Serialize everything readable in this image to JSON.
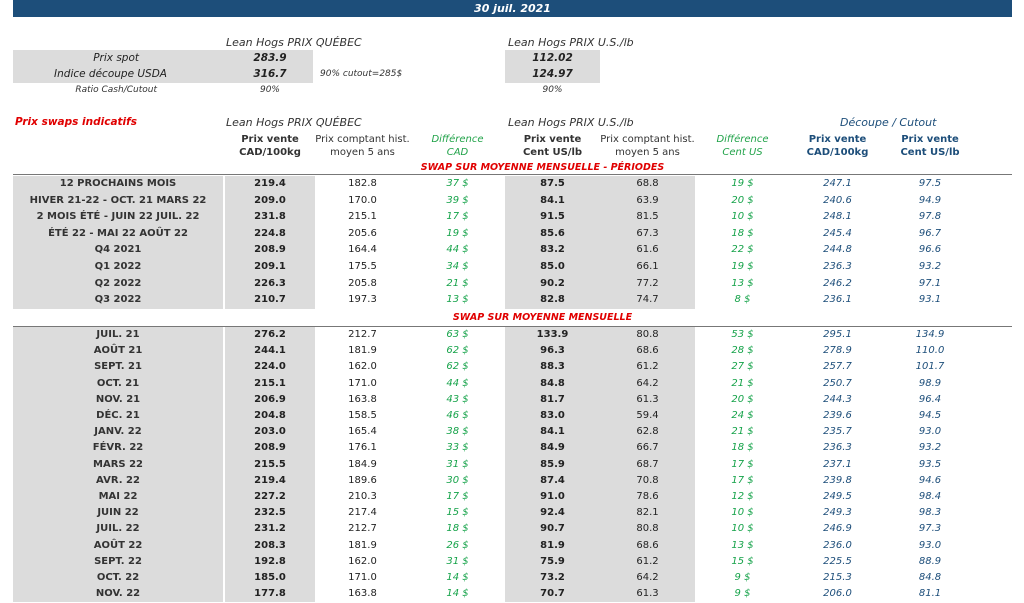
{
  "header": {
    "date": "30 juil. 2021"
  },
  "top": {
    "quebec_title": "Lean Hogs PRIX QUÉBEC",
    "us_title": "Lean Hogs PRIX U.S./lb",
    "rows": [
      {
        "label": "Prix spot",
        "qc": "283.9",
        "us": "112.02"
      },
      {
        "label": "Indice découpe USDA",
        "qc": "316.7",
        "us": "124.97",
        "note": "90% cutout=285$"
      }
    ],
    "ratio": {
      "label": "Ratio Cash/Cutout",
      "qc": "90%",
      "us": "90%"
    }
  },
  "swaps": {
    "title": "Prix swaps indicatifs",
    "quebec_title": "Lean Hogs PRIX QUÉBEC",
    "us_title": "Lean Hogs PRIX U.S./lb",
    "decoupe_title": "Découpe / Cutout",
    "col_headers": [
      [
        "Prix vente",
        "CAD/100kg"
      ],
      [
        "Prix comptant hist.",
        "moyen 5 ans"
      ],
      [
        "Différence",
        "CAD"
      ],
      [
        "Prix vente",
        "Cent US/lb"
      ],
      [
        "Prix comptant hist.",
        "moyen 5 ans"
      ],
      [
        "Différence",
        "Cent US"
      ],
      [
        "Prix vente",
        "CAD/100kg"
      ],
      [
        "Prix vente",
        "Cent US/lb"
      ]
    ],
    "section1_title": "SWAP SUR MOYENNE MENSUELLE - PÉRIODES",
    "section2_title": "SWAP SUR MOYENNE MENSUELLE",
    "periods": [
      [
        "12 PROCHAINS MOIS",
        "219.4",
        "182.8",
        "37 $",
        "87.5",
        "68.8",
        "19 $",
        "247.1",
        "97.5"
      ],
      [
        "HIVER 21-22 - OCT. 21 MARS 22",
        "209.0",
        "170.0",
        "39 $",
        "84.1",
        "63.9",
        "20 $",
        "240.6",
        "94.9"
      ],
      [
        "2 MOIS ÉTÉ - JUIN 22 JUIL. 22",
        "231.8",
        "215.1",
        "17 $",
        "91.5",
        "81.5",
        "10 $",
        "248.1",
        "97.8"
      ],
      [
        "ÉTÉ 22 - MAI 22 AOÛT 22",
        "224.8",
        "205.6",
        "19 $",
        "85.6",
        "67.3",
        "18 $",
        "245.4",
        "96.7"
      ],
      [
        "Q4 2021",
        "208.9",
        "164.4",
        "44 $",
        "83.2",
        "61.6",
        "22 $",
        "244.8",
        "96.6"
      ],
      [
        "Q1 2022",
        "209.1",
        "175.5",
        "34 $",
        "85.0",
        "66.1",
        "19 $",
        "236.3",
        "93.2"
      ],
      [
        "Q2 2022",
        "226.3",
        "205.8",
        "21 $",
        "90.2",
        "77.2",
        "13 $",
        "246.2",
        "97.1"
      ],
      [
        "Q3 2022",
        "210.7",
        "197.3",
        "13 $",
        "82.8",
        "74.7",
        "8 $",
        "236.1",
        "93.1"
      ]
    ],
    "months": [
      [
        "JUIL. 21",
        "276.2",
        "212.7",
        "63 $",
        "133.9",
        "80.8",
        "53 $",
        "295.1",
        "134.9"
      ],
      [
        "AOÛT 21",
        "244.1",
        "181.9",
        "62 $",
        "96.3",
        "68.6",
        "28 $",
        "278.9",
        "110.0"
      ],
      [
        "SEPT. 21",
        "224.0",
        "162.0",
        "62 $",
        "88.3",
        "61.2",
        "27 $",
        "257.7",
        "101.7"
      ],
      [
        "OCT. 21",
        "215.1",
        "171.0",
        "44 $",
        "84.8",
        "64.2",
        "21 $",
        "250.7",
        "98.9"
      ],
      [
        "NOV. 21",
        "206.9",
        "163.8",
        "43 $",
        "81.7",
        "61.3",
        "20 $",
        "244.3",
        "96.4"
      ],
      [
        "DÉC. 21",
        "204.8",
        "158.5",
        "46 $",
        "83.0",
        "59.4",
        "24 $",
        "239.6",
        "94.5"
      ],
      [
        "JANV. 22",
        "203.0",
        "165.4",
        "38 $",
        "84.1",
        "62.8",
        "21 $",
        "235.7",
        "93.0"
      ],
      [
        "FÉVR. 22",
        "208.9",
        "176.1",
        "33 $",
        "84.9",
        "66.7",
        "18 $",
        "236.3",
        "93.2"
      ],
      [
        "MARS 22",
        "215.5",
        "184.9",
        "31 $",
        "85.9",
        "68.7",
        "17 $",
        "237.1",
        "93.5"
      ],
      [
        "AVR. 22",
        "219.4",
        "189.6",
        "30 $",
        "87.4",
        "70.8",
        "17 $",
        "239.8",
        "94.6"
      ],
      [
        "MAI 22",
        "227.2",
        "210.3",
        "17 $",
        "91.0",
        "78.6",
        "12 $",
        "249.5",
        "98.4"
      ],
      [
        "JUIN 22",
        "232.5",
        "217.4",
        "15 $",
        "92.4",
        "82.1",
        "10 $",
        "249.3",
        "98.3"
      ],
      [
        "JUIL. 22",
        "231.2",
        "212.7",
        "18 $",
        "90.7",
        "80.8",
        "10 $",
        "246.9",
        "97.3"
      ],
      [
        "AOÛT 22",
        "208.3",
        "181.9",
        "26 $",
        "81.9",
        "68.6",
        "13 $",
        "236.0",
        "93.0"
      ],
      [
        "SEPT. 22",
        "192.8",
        "162.0",
        "31 $",
        "75.9",
        "61.2",
        "15 $",
        "225.5",
        "88.9"
      ],
      [
        "OCT. 22",
        "185.0",
        "171.0",
        "14 $",
        "73.2",
        "64.2",
        "9 $",
        "215.3",
        "84.8"
      ],
      [
        "NOV. 22",
        "177.8",
        "163.8",
        "14 $",
        "70.7",
        "61.3",
        "9 $",
        "206.0",
        "81.1"
      ]
    ]
  }
}
